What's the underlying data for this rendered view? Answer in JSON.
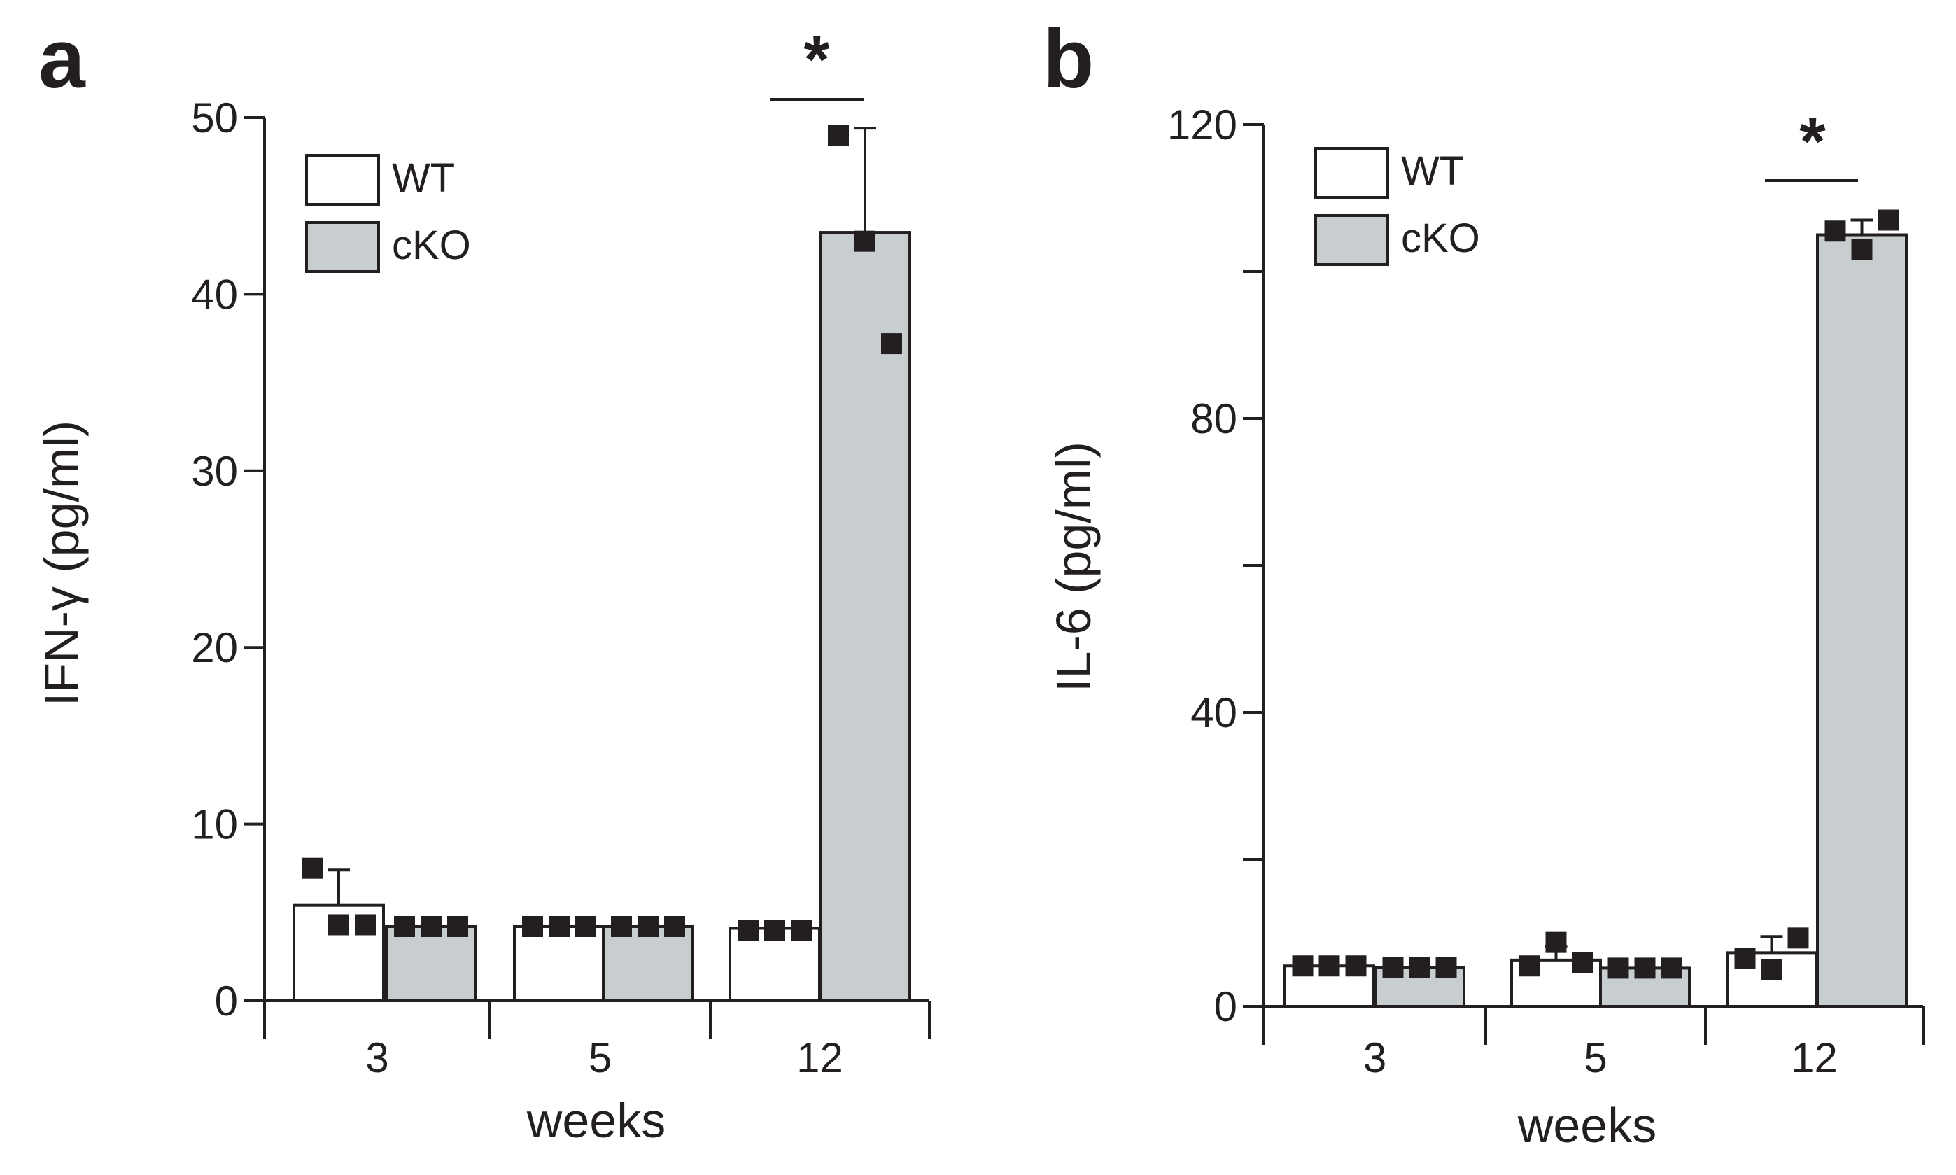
{
  "chart_data": [
    {
      "id": "a",
      "type": "bar",
      "panel_letter": "a",
      "xlabel": "weeks",
      "ylabel": "IFN-γ (pg/ml)",
      "categories": [
        "3",
        "5",
        "12"
      ],
      "ylim": [
        0,
        50
      ],
      "yticks": [
        0,
        10,
        20,
        30,
        40,
        50
      ],
      "legend": {
        "position": "top-left",
        "entries": [
          "WT",
          "cKO"
        ]
      },
      "colors": {
        "WT": "#ffffff",
        "cKO": "#c8cdcf",
        "stroke": "#231f20"
      },
      "series": [
        {
          "name": "WT",
          "values": [
            5.4,
            4.2,
            4.1
          ],
          "errors": [
            2.0,
            0,
            0
          ],
          "points": [
            [
              7.5,
              4.3,
              4.3
            ],
            [
              4.2,
              4.2,
              4.2
            ],
            [
              4.0,
              4.0,
              4.0
            ]
          ]
        },
        {
          "name": "cKO",
          "values": [
            4.2,
            4.2,
            43.5
          ],
          "errors": [
            0,
            0,
            5.9
          ],
          "points": [
            [
              4.2,
              4.2,
              4.2
            ],
            [
              4.2,
              4.2,
              4.2
            ],
            [
              49.0,
              43.0,
              37.2
            ]
          ]
        }
      ],
      "significance": [
        {
          "category": "12",
          "label": "*"
        }
      ]
    },
    {
      "id": "b",
      "type": "bar",
      "panel_letter": "b",
      "xlabel": "weeks",
      "ylabel": "IL-6 (pg/ml)",
      "categories": [
        "3",
        "5",
        "12"
      ],
      "ylim": [
        0,
        120
      ],
      "yticks": [
        0,
        20,
        40,
        60,
        80,
        100,
        120
      ],
      "ytick_labels": [
        "0",
        "",
        "40",
        "",
        "80",
        "",
        "120"
      ],
      "legend": {
        "position": "top-left",
        "entries": [
          "WT",
          "cKO"
        ]
      },
      "colors": {
        "WT": "#ffffff",
        "cKO": "#c8cdcf",
        "stroke": "#231f20"
      },
      "series": [
        {
          "name": "WT",
          "values": [
            5.5,
            6.3,
            7.3
          ],
          "errors": [
            0,
            1.8,
            2.2
          ],
          "points": [
            [
              5.5,
              5.5,
              5.5
            ],
            [
              5.5,
              8.7,
              6.0
            ],
            [
              6.5,
              5.0,
              9.3
            ]
          ]
        },
        {
          "name": "cKO",
          "values": [
            5.3,
            5.2,
            105.0
          ],
          "errors": [
            0,
            0,
            2.0
          ],
          "points": [
            [
              5.3,
              5.3,
              5.3
            ],
            [
              5.2,
              5.2,
              5.2
            ],
            [
              105.5,
              103.0,
              107.0
            ]
          ]
        }
      ],
      "significance": [
        {
          "category": "12",
          "label": "*"
        }
      ]
    }
  ]
}
